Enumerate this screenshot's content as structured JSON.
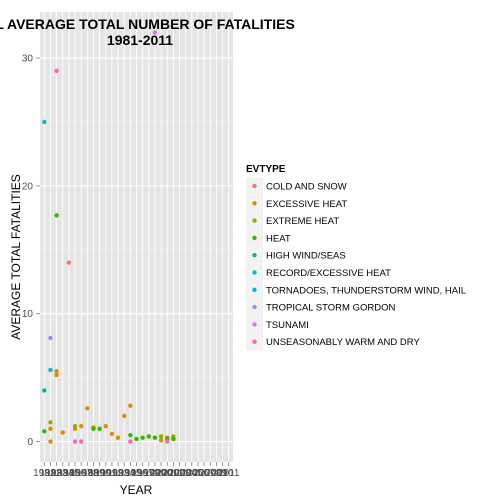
{
  "chart_data": {
    "type": "scatter",
    "title_line1": "AL AVERAGE TOTAL NUMBER OF FATALITIES",
    "title_line2": "1981-2011",
    "xlabel": "YEAR",
    "ylabel": "AVERAGE TOTAL FATALITIES",
    "xlim": [
      1980.3,
      2011.7
    ],
    "ylim": [
      -1.6,
      33.6
    ],
    "y_ticks": [
      0,
      10,
      20,
      30
    ],
    "x_tick_labels": [
      "1981",
      "1982",
      "1983",
      "1984",
      "1985",
      "1986",
      "1987",
      "1988",
      "1989",
      "1990",
      "1991",
      "1992",
      "1993",
      "1994",
      "1995",
      "1996",
      "1997",
      "1998",
      "1999",
      "2000",
      "2001",
      "2002",
      "2003",
      "2004",
      "2005",
      "2006",
      "2007",
      "2008",
      "2009",
      "2010",
      "2011"
    ],
    "x_tick_values": [
      1981,
      1982,
      1983,
      1984,
      1985,
      1986,
      1987,
      1988,
      1989,
      1990,
      1991,
      1992,
      1993,
      1994,
      1995,
      1996,
      1997,
      1998,
      1999,
      2000,
      2001,
      2002,
      2003,
      2004,
      2005,
      2006,
      2007,
      2008,
      2009,
      2010,
      2011
    ],
    "legend_title": "EVTYPE",
    "legend_position": "right",
    "grid": true,
    "series": [
      {
        "name": "COLD AND SNOW",
        "color": "#F8766D",
        "points": [
          [
            1985,
            14.0
          ]
        ]
      },
      {
        "name": "EXCESSIVE HEAT",
        "color": "#D89000",
        "points": [
          [
            1982,
            0.0
          ],
          [
            1982,
            1.0
          ],
          [
            1983,
            5.2
          ],
          [
            1983,
            5.5
          ],
          [
            1984,
            0.7
          ],
          [
            1986,
            1.0
          ],
          [
            1987,
            1.2
          ],
          [
            1988,
            2.6
          ],
          [
            1991,
            1.2
          ],
          [
            1992,
            0.6
          ],
          [
            1993,
            0.3
          ],
          [
            1994,
            2.0
          ],
          [
            1995,
            2.8
          ],
          [
            2000,
            0.1
          ],
          [
            2001,
            0.3
          ],
          [
            2002,
            0.2
          ]
        ]
      },
      {
        "name": "EXTREME HEAT",
        "color": "#A3A500",
        "points": [
          [
            1982,
            1.5
          ],
          [
            1986,
            1.2
          ],
          [
            1989,
            1.1
          ],
          [
            2000,
            0.4
          ],
          [
            2002,
            0.4
          ]
        ]
      },
      {
        "name": "HEAT",
        "color": "#39B600",
        "points": [
          [
            1981,
            0.8
          ],
          [
            1983,
            17.7
          ],
          [
            1989,
            1.0
          ],
          [
            1990,
            1.0
          ],
          [
            1995,
            0.5
          ],
          [
            1996,
            0.2
          ],
          [
            1997,
            0.3
          ],
          [
            1998,
            0.4
          ],
          [
            1999,
            0.3
          ],
          [
            2001,
            0.2
          ],
          [
            2002,
            0.2
          ]
        ]
      },
      {
        "name": "HIGH WIND/SEAS",
        "color": "#00BF7D",
        "points": [
          [
            1981,
            4.0
          ]
        ]
      },
      {
        "name": "RECORD/EXCESSIVE HEAT",
        "color": "#00BFC4",
        "points": [
          [
            1981,
            25.0
          ],
          [
            1982,
            5.6
          ]
        ]
      },
      {
        "name": "TORNADOES, THUNDERSTORM WIND, HAIL",
        "color": "#00B0F6",
        "points": []
      },
      {
        "name": "TROPICAL STORM GORDON",
        "color": "#9590FF",
        "points": [
          [
            1982,
            8.1
          ]
        ]
      },
      {
        "name": "TSUNAMI",
        "color": "#E76BF3",
        "points": [
          [
            1999,
            32.0
          ]
        ]
      },
      {
        "name": "UNSEASONABLY WARM AND DRY",
        "color": "#FF62BC",
        "points": [
          [
            1983,
            29.0
          ],
          [
            1986,
            0.0
          ],
          [
            1987,
            0.0
          ],
          [
            1995,
            0.0
          ],
          [
            2001,
            0.0
          ]
        ]
      }
    ]
  }
}
